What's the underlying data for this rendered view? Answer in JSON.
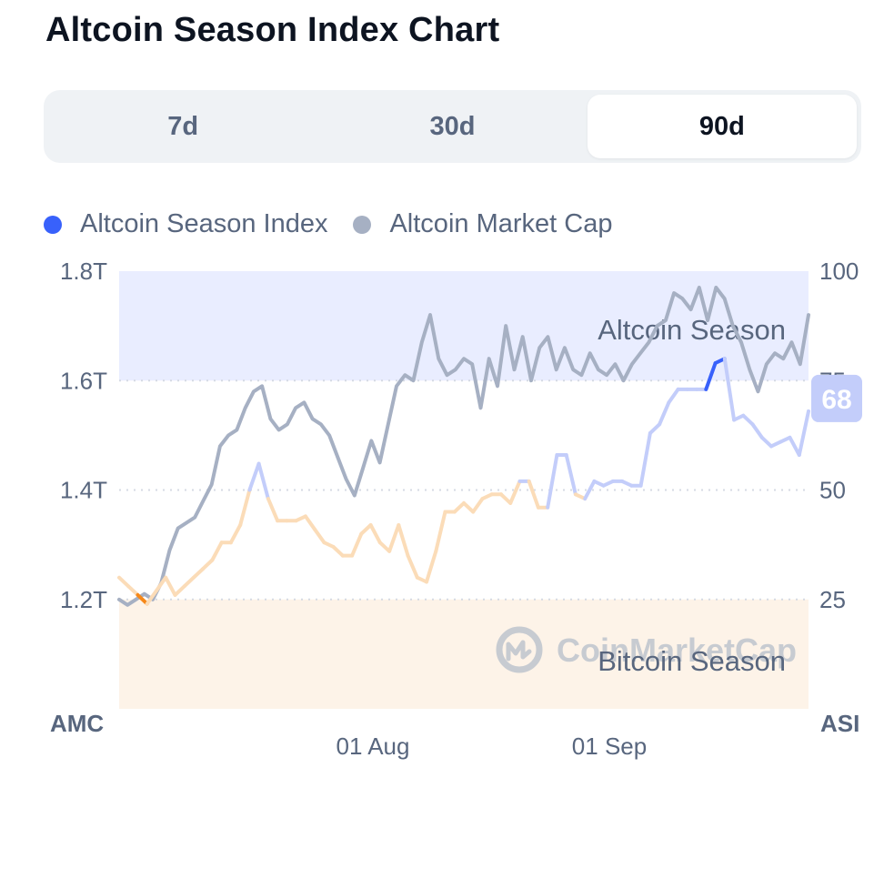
{
  "title": "Altcoin Season Index Chart",
  "tabs": [
    {
      "label": "7d",
      "active": false
    },
    {
      "label": "30d",
      "active": false
    },
    {
      "label": "90d",
      "active": true
    }
  ],
  "legend": [
    {
      "label": "Altcoin Season Index",
      "color": "#3861fb"
    },
    {
      "label": "Altcoin Market Cap",
      "color": "#a6b0c3"
    }
  ],
  "watermark": "CoinMarketCap",
  "chart_data": {
    "type": "line",
    "x_ticks": [
      "01 Aug",
      "01 Sep"
    ],
    "left_axis": {
      "title": "AMC",
      "ticks": [
        "1.8T",
        "1.6T",
        "1.4T",
        "1.2T"
      ],
      "range": [
        1.0,
        1.8
      ]
    },
    "right_axis": {
      "title": "ASI",
      "ticks": [
        "100",
        "75",
        "50",
        "25"
      ],
      "range": [
        0,
        100
      ]
    },
    "zones": [
      {
        "label": "Altcoin Season",
        "from": 75,
        "to": 100,
        "color": "#e9edff"
      },
      {
        "label": "Bitcoin Season",
        "from": 0,
        "to": 25,
        "color": "#fdf3e8"
      }
    ],
    "current_value_badge": "68",
    "series": [
      {
        "name": "Altcoin Market Cap",
        "axis": "left",
        "color": "#a6b0c3",
        "values": [
          1.2,
          1.19,
          1.2,
          1.21,
          1.2,
          1.23,
          1.29,
          1.33,
          1.34,
          1.35,
          1.38,
          1.41,
          1.48,
          1.5,
          1.51,
          1.55,
          1.58,
          1.59,
          1.53,
          1.51,
          1.52,
          1.55,
          1.56,
          1.53,
          1.52,
          1.5,
          1.46,
          1.42,
          1.39,
          1.44,
          1.49,
          1.45,
          1.52,
          1.59,
          1.61,
          1.6,
          1.67,
          1.72,
          1.64,
          1.61,
          1.62,
          1.64,
          1.63,
          1.55,
          1.64,
          1.59,
          1.7,
          1.62,
          1.68,
          1.6,
          1.66,
          1.68,
          1.62,
          1.66,
          1.62,
          1.61,
          1.65,
          1.62,
          1.61,
          1.63,
          1.6,
          1.63,
          1.65,
          1.67,
          1.7,
          1.71,
          1.76,
          1.75,
          1.73,
          1.77,
          1.71,
          1.77,
          1.75,
          1.7,
          1.67,
          1.62,
          1.58,
          1.63,
          1.65,
          1.64,
          1.67,
          1.63,
          1.72
        ]
      },
      {
        "name": "Altcoin Season Index",
        "axis": "right",
        "color": "#3861fb",
        "values": [
          30,
          28,
          26,
          24,
          27,
          30,
          26,
          28,
          30,
          32,
          34,
          38,
          38,
          42,
          50,
          56,
          48,
          43,
          43,
          43,
          44,
          41,
          38,
          37,
          35,
          35,
          40,
          42,
          38,
          36,
          42,
          35,
          30,
          29,
          36,
          45,
          45,
          47,
          45,
          48,
          49,
          49,
          47,
          52,
          52,
          46,
          46,
          58,
          58,
          49,
          48,
          52,
          51,
          52,
          52,
          51,
          51,
          63,
          65,
          70,
          73,
          73,
          73,
          73,
          79,
          80,
          66,
          67,
          65,
          62,
          60,
          61,
          62,
          58,
          68
        ]
      }
    ]
  }
}
